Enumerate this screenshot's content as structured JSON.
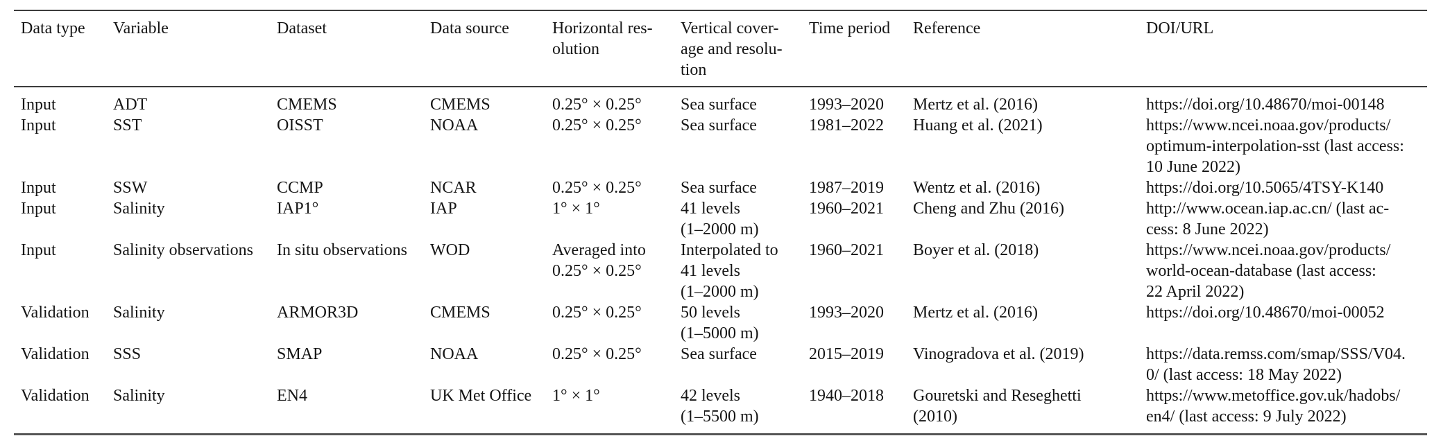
{
  "colors": {
    "background": "#ffffff",
    "text": "#151515",
    "rule": "#3c3c3c"
  },
  "table": {
    "columns": [
      "Data type",
      "Variable",
      "Dataset",
      "Data source",
      "Horizontal res-\nolution",
      "Vertical cover-\nage and resolu-\ntion",
      "Time period",
      "Reference",
      "DOI/URL"
    ],
    "rows": [
      [
        "Input",
        "ADT",
        "CMEMS",
        "CMEMS",
        "0.25° × 0.25°",
        "Sea surface",
        "1993–2020",
        "Mertz et al. (2016)",
        "https://doi.org/10.48670/moi-00148"
      ],
      [
        "Input",
        "SST",
        "OISST",
        "NOAA",
        "0.25° × 0.25°",
        "Sea surface",
        "1981–2022",
        "Huang et al. (2021)",
        "https://www.ncei.noaa.gov/products/\noptimum-interpolation-sst (last access:\n10 June 2022)"
      ],
      [
        "Input",
        "SSW",
        "CCMP",
        "NCAR",
        "0.25° × 0.25°",
        "Sea surface",
        "1987–2019",
        "Wentz et al. (2016)",
        "https://doi.org/10.5065/4TSY-K140"
      ],
      [
        "Input",
        "Salinity",
        "IAP1°",
        "IAP",
        "1° × 1°",
        "41 levels\n(1–2000 m)",
        "1960–2021",
        "Cheng and Zhu (2016)",
        "http://www.ocean.iap.ac.cn/ (last ac-\ncess: 8 June 2022)"
      ],
      [
        "Input",
        "Salinity observations",
        "In situ observations",
        "WOD",
        "Averaged into\n0.25° × 0.25°",
        "Interpolated to\n41 levels\n(1–2000 m)",
        "1960–2021",
        "Boyer et al. (2018)",
        "https://www.ncei.noaa.gov/products/\nworld-ocean-database (last access:\n22 April 2022)"
      ],
      [
        "Validation",
        "Salinity",
        "ARMOR3D",
        "CMEMS",
        "0.25° × 0.25°",
        "50 levels\n(1–5000 m)",
        "1993–2020",
        "Mertz et al. (2016)",
        "https://doi.org/10.48670/moi-00052"
      ],
      [
        "Validation",
        "SSS",
        "SMAP",
        "NOAA",
        "0.25° × 0.25°",
        "Sea surface",
        "2015–2019",
        "Vinogradova et al. (2019)",
        "https://data.remss.com/smap/SSS/V04.\n0/ (last access: 18 May 2022)"
      ],
      [
        "Validation",
        "Salinity",
        "EN4",
        "UK Met Office",
        "1° × 1°",
        "42 levels\n(1–5500 m)",
        "1940–2018",
        "Gouretski and Reseghetti\n(2010)",
        "https://www.metoffice.gov.uk/hadobs/\nen4/ (last access: 9 July 2022)"
      ]
    ]
  }
}
